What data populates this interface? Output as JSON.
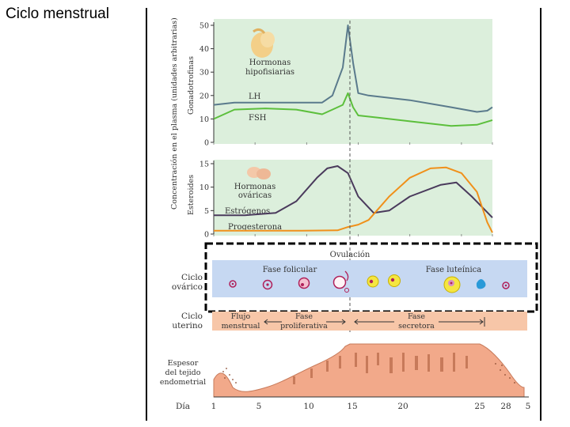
{
  "slide": {
    "title": "Ciclo menstrual"
  },
  "yaxis": {
    "outer_label": "Concentración en el plasma (unidades arbitrarias)",
    "gonado_label": "Gonadotrofinas",
    "ester_label": "Esteroides"
  },
  "labels": {
    "pituitary": [
      "Hormonas",
      "hipofisiarias"
    ],
    "ovarian": [
      "Hormonas",
      "ováricas"
    ],
    "lh": "LH",
    "fsh": "FSH",
    "estrogen": "Estrógenos",
    "progesterone": "Progesterona",
    "ovulation": "Ovulación",
    "follicular": "Fase folicular",
    "luteal": "Fase luteínica",
    "ovarian_cycle": [
      "Ciclo",
      "ovárico"
    ],
    "uterine_cycle": [
      "Ciclo",
      "uterino"
    ],
    "menstrual": [
      "Flujo",
      "menstrual"
    ],
    "proliferative": [
      "Fase",
      "proliferativa"
    ],
    "secretory": [
      "Fase",
      "secretora"
    ],
    "thickness": [
      "Espesor",
      "del tejido",
      "endometrial"
    ],
    "day": "Día"
  },
  "colors": {
    "panel_bg": "#dcefdc",
    "lh": "#5a7a8c",
    "fsh": "#5cbf3c",
    "estrogen": "#4a3a5c",
    "progesterone": "#f0901a",
    "ovarian_bg": "#c6d8f2",
    "uterine_bg": "#f7c6a8",
    "tissue": "#f2a98a"
  },
  "chart_data": [
    {
      "type": "line",
      "panel": "gonadotrofinas",
      "ylim": [
        0,
        50
      ],
      "yticks": [
        0,
        10,
        20,
        30,
        40,
        50
      ],
      "xlim": [
        1,
        28
      ],
      "series": [
        {
          "name": "LH",
          "x": [
            1,
            3,
            6,
            9,
            11.5,
            12.5,
            13.5,
            14,
            14.5,
            15,
            16,
            20,
            24,
            26.5,
            27.5,
            28
          ],
          "y": [
            16,
            17,
            17,
            17,
            17,
            20,
            32,
            50,
            34,
            21,
            20,
            18,
            15,
            13,
            13.5,
            15
          ]
        },
        {
          "name": "FSH",
          "x": [
            1,
            3,
            6,
            9,
            11.5,
            12.5,
            13.5,
            14,
            14.5,
            15,
            17,
            20,
            24,
            26.5,
            28
          ],
          "y": [
            10,
            14,
            14.5,
            14,
            12,
            14,
            16,
            21,
            15,
            11.5,
            10.5,
            9,
            7,
            7.5,
            9.5
          ]
        }
      ]
    },
    {
      "type": "line",
      "panel": "esteroides",
      "ylim": [
        0,
        15
      ],
      "yticks": [
        0,
        5,
        10,
        15
      ],
      "xlim": [
        1,
        28
      ],
      "series": [
        {
          "name": "Estrógenos",
          "x": [
            1,
            4,
            7,
            9,
            11,
            12,
            13,
            14,
            15,
            16.5,
            18,
            20,
            23,
            24.5,
            26,
            28
          ],
          "y": [
            4,
            4,
            4.5,
            7,
            12,
            14,
            14.5,
            13,
            8,
            4.5,
            5,
            8,
            10.5,
            11,
            8,
            3.5
          ]
        },
        {
          "name": "Progesterona",
          "x": [
            1,
            5,
            9,
            13,
            14,
            15,
            16,
            18,
            20,
            22,
            23.5,
            25,
            26.5,
            27.5,
            28
          ],
          "y": [
            0.7,
            0.7,
            0.7,
            0.8,
            1.5,
            2,
            3,
            8,
            12,
            14,
            14.2,
            13,
            9,
            2.5,
            0.3
          ]
        }
      ]
    }
  ],
  "days": [
    "1",
    "5",
    "10",
    "15",
    "20",
    "25",
    "28",
    "5"
  ]
}
